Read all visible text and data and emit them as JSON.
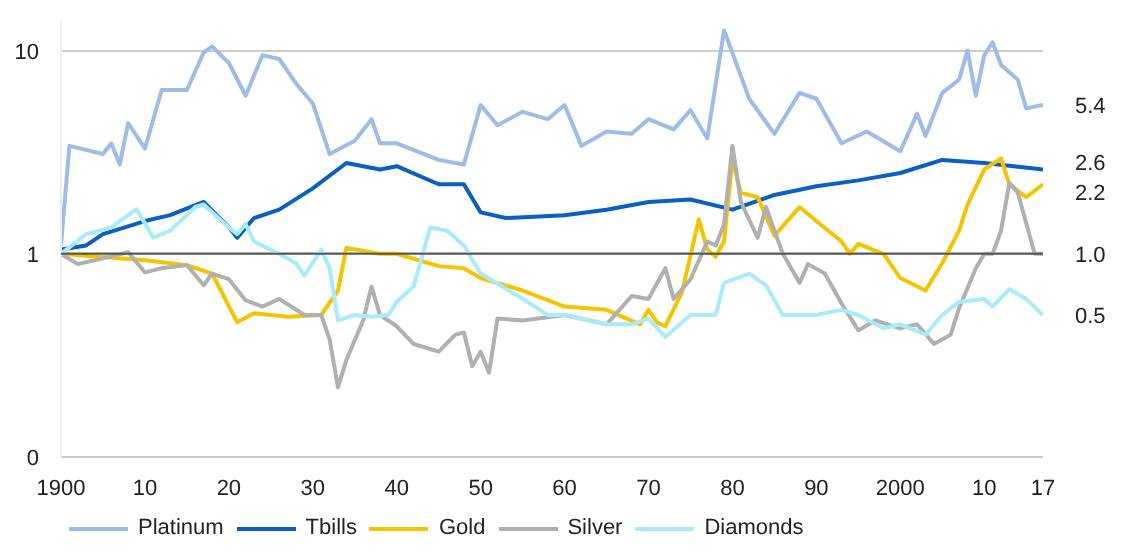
{
  "chart_data": {
    "type": "line",
    "log": "y",
    "grid": "y",
    "legend": "bottom left",
    "line_style": "solid",
    "marker": "none",
    "xlim": [
      1900,
      2017
    ],
    "ylim": [
      0.1,
      14
    ],
    "xticks": [
      {
        "value": 1900,
        "label": "1900"
      },
      {
        "value": 1910,
        "label": "10"
      },
      {
        "value": 1920,
        "label": "20"
      },
      {
        "value": 1930,
        "label": "30"
      },
      {
        "value": 1940,
        "label": "40"
      },
      {
        "value": 1950,
        "label": "50"
      },
      {
        "value": 1960,
        "label": "60"
      },
      {
        "value": 1970,
        "label": "70"
      },
      {
        "value": 1980,
        "label": "80"
      },
      {
        "value": 1990,
        "label": "90"
      },
      {
        "value": 2000,
        "label": "2000"
      },
      {
        "value": 2010,
        "label": "10"
      },
      {
        "value": 2017,
        "label": "17"
      }
    ],
    "yticks": [
      {
        "value": 0.1,
        "label": "0"
      },
      1,
      10
    ],
    "ref_lines": [
      {
        "axis": "y",
        "value": 1,
        "color": "#555555"
      }
    ],
    "series": [
      {
        "name": "Platinum",
        "color": "#9dbde6",
        "x": [
          1900,
          1901,
          1905,
          1906,
          1907,
          1908,
          1910,
          1912,
          1915,
          1917,
          1918,
          1920,
          1922,
          1924,
          1926,
          1928,
          1930,
          1932,
          1935,
          1937,
          1938,
          1940,
          1945,
          1948,
          1950,
          1952,
          1955,
          1958,
          1960,
          1962,
          1965,
          1968,
          1970,
          1973,
          1975,
          1977,
          1979,
          1982,
          1985,
          1988,
          1990,
          1993,
          1996,
          2000,
          2002,
          2003,
          2005,
          2007,
          2008,
          2009,
          2010,
          2011,
          2012,
          2014,
          2015,
          2017
        ],
        "values": [
          1.1,
          3.4,
          3.1,
          3.5,
          2.75,
          4.4,
          3.3,
          6.4,
          6.4,
          9.8,
          10.5,
          8.7,
          6.0,
          9.5,
          9.1,
          6.9,
          5.5,
          3.1,
          3.6,
          4.6,
          3.5,
          3.5,
          2.9,
          2.75,
          5.4,
          4.3,
          5.0,
          4.6,
          5.4,
          3.4,
          4.0,
          3.9,
          4.6,
          4.1,
          5.1,
          3.7,
          12.6,
          5.8,
          3.9,
          6.2,
          5.8,
          3.5,
          4.0,
          3.2,
          4.9,
          3.8,
          6.2,
          7.2,
          10,
          6.0,
          9.5,
          11,
          8.5,
          7.2,
          5.2,
          5.4
        ]
      },
      {
        "name": "Tbills",
        "color": "#0a5fc4",
        "x": [
          1900,
          1903,
          1905,
          1910,
          1913,
          1917,
          1920,
          1921,
          1923,
          1926,
          1930,
          1934,
          1938,
          1940,
          1945,
          1948,
          1950,
          1953,
          1960,
          1965,
          1970,
          1975,
          1980,
          1985,
          1990,
          1995,
          2000,
          2005,
          2010,
          2017
        ],
        "values": [
          1.05,
          1.1,
          1.25,
          1.45,
          1.55,
          1.8,
          1.35,
          1.2,
          1.5,
          1.65,
          2.1,
          2.8,
          2.6,
          2.7,
          2.2,
          2.2,
          1.6,
          1.5,
          1.55,
          1.65,
          1.8,
          1.85,
          1.65,
          1.95,
          2.15,
          2.3,
          2.5,
          2.9,
          2.8,
          2.6
        ]
      },
      {
        "name": "Gold",
        "color": "#f5c400",
        "x": [
          1900,
          1910,
          1915,
          1918,
          1921,
          1923,
          1927,
          1931,
          1933,
          1934,
          1938,
          1940,
          1945,
          1948,
          1950,
          1955,
          1960,
          1965,
          1969,
          1970,
          1971,
          1972,
          1974,
          1976,
          1977,
          1978,
          1979,
          1980,
          1981,
          1983,
          1985,
          1988,
          1990,
          1993,
          1994,
          1995,
          1998,
          2000,
          2003,
          2005,
          2007,
          2008,
          2010,
          2012,
          2013,
          2015,
          2017
        ],
        "values": [
          1.0,
          0.93,
          0.88,
          0.8,
          0.46,
          0.51,
          0.49,
          0.5,
          0.66,
          1.07,
          1.0,
          1.0,
          0.87,
          0.85,
          0.76,
          0.66,
          0.55,
          0.53,
          0.45,
          0.53,
          0.46,
          0.44,
          0.65,
          1.48,
          1.05,
          0.97,
          1.15,
          2.9,
          2.0,
          1.9,
          1.23,
          1.7,
          1.45,
          1.15,
          1.0,
          1.12,
          1.0,
          0.76,
          0.66,
          0.9,
          1.3,
          1.74,
          2.6,
          2.95,
          2.2,
          1.9,
          2.2
        ]
      },
      {
        "name": "Silver",
        "color": "#b0b0b0",
        "x": [
          1900,
          1902,
          1905,
          1908,
          1910,
          1912,
          1915,
          1917,
          1918,
          1920,
          1922,
          1924,
          1926,
          1929,
          1931,
          1932,
          1933,
          1934,
          1936,
          1937,
          1938,
          1940,
          1942,
          1945,
          1947,
          1948,
          1949,
          1950,
          1951,
          1952,
          1955,
          1960,
          1965,
          1968,
          1970,
          1972,
          1973,
          1975,
          1977,
          1978,
          1979,
          1980,
          1981,
          1983,
          1984,
          1986,
          1988,
          1989,
          1991,
          1993,
          1995,
          1997,
          2000,
          2002,
          2004,
          2006,
          2007,
          2009,
          2010,
          2011,
          2012,
          2013,
          2014,
          2016,
          2017
        ],
        "values": [
          1.0,
          0.89,
          0.95,
          1.02,
          0.81,
          0.85,
          0.88,
          0.7,
          0.8,
          0.75,
          0.59,
          0.55,
          0.6,
          0.5,
          0.5,
          0.38,
          0.22,
          0.3,
          0.47,
          0.69,
          0.5,
          0.44,
          0.36,
          0.33,
          0.4,
          0.41,
          0.28,
          0.33,
          0.26,
          0.48,
          0.47,
          0.5,
          0.45,
          0.62,
          0.6,
          0.85,
          0.6,
          0.75,
          1.15,
          1.1,
          1.4,
          3.4,
          1.8,
          1.2,
          1.7,
          1.0,
          0.72,
          0.89,
          0.8,
          0.57,
          0.42,
          0.47,
          0.43,
          0.45,
          0.36,
          0.4,
          0.54,
          0.85,
          1.0,
          1.0,
          1.3,
          2.24,
          2.0,
          1.0,
          1.0
        ]
      },
      {
        "name": "Diamonds",
        "color": "#a8ecfb",
        "x": [
          1900,
          1903,
          1906,
          1909,
          1911,
          1913,
          1916,
          1917,
          1920,
          1921,
          1922,
          1923,
          1926,
          1928,
          1929,
          1931,
          1932,
          1933,
          1935,
          1937,
          1939,
          1940,
          1942,
          1944,
          1946,
          1948,
          1950,
          1955,
          1958,
          1960,
          1965,
          1968,
          1970,
          1972,
          1975,
          1978,
          1979,
          1982,
          1984,
          1986,
          1990,
          1993,
          1995,
          1998,
          2000,
          2003,
          2005,
          2007,
          2010,
          2011,
          2013,
          2015,
          2017
        ],
        "values": [
          1.0,
          1.25,
          1.35,
          1.66,
          1.2,
          1.3,
          1.7,
          1.75,
          1.35,
          1.25,
          1.4,
          1.15,
          1.0,
          0.9,
          0.78,
          1.05,
          0.85,
          0.47,
          0.5,
          0.49,
          0.5,
          0.58,
          0.69,
          1.35,
          1.3,
          1.1,
          0.8,
          0.6,
          0.5,
          0.5,
          0.45,
          0.45,
          0.48,
          0.39,
          0.5,
          0.5,
          0.72,
          0.8,
          0.7,
          0.5,
          0.5,
          0.53,
          0.5,
          0.43,
          0.45,
          0.4,
          0.5,
          0.58,
          0.6,
          0.55,
          0.67,
          0.6,
          0.5
        ]
      }
    ],
    "annotations": [
      "5.4",
      "2.6",
      "2.2",
      "1.0",
      "0.5"
    ]
  }
}
